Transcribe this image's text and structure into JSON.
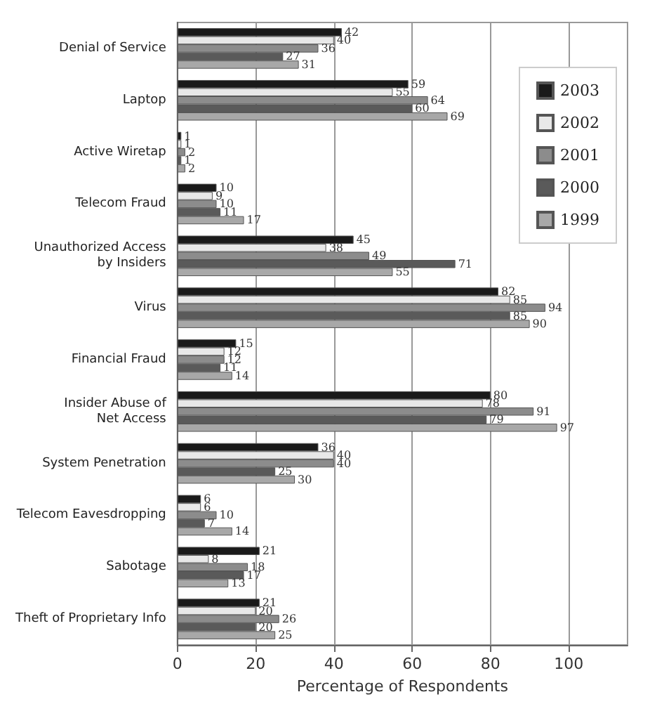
{
  "chart_data": {
    "type": "bar",
    "orientation": "horizontal",
    "xlabel": "Percentage of Respondents",
    "categories": [
      "Denial of Service",
      "Laptop",
      "Active Wiretap",
      "Telecom Fraud",
      "Unauthorized Access\nby Insiders",
      "Virus",
      "Financial Fraud",
      "Insider Abuse of\nNet Access",
      "System Penetration",
      "Telecom Eavesdropping",
      "Sabotage",
      "Theft of Proprietary Info"
    ],
    "series": [
      {
        "name": "2003",
        "color": "#1a1a1a",
        "values": [
          42,
          59,
          1,
          10,
          45,
          82,
          15,
          80,
          36,
          6,
          21,
          21
        ]
      },
      {
        "name": "2002",
        "color": "#e8e8e8",
        "values": [
          40,
          55,
          1,
          9,
          38,
          85,
          12,
          78,
          40,
          6,
          8,
          20
        ]
      },
      {
        "name": "2001",
        "color": "#8c8c8c",
        "values": [
          36,
          64,
          2,
          10,
          49,
          94,
          12,
          91,
          40,
          10,
          18,
          26
        ]
      },
      {
        "name": "2000",
        "color": "#5a5a5a",
        "values": [
          27,
          60,
          1,
          11,
          71,
          85,
          11,
          79,
          25,
          7,
          17,
          20
        ]
      },
      {
        "name": "1999",
        "color": "#a8a8a8",
        "values": [
          31,
          69,
          2,
          17,
          55,
          90,
          14,
          97,
          30,
          14,
          13,
          25
        ]
      }
    ],
    "xlim": [
      0,
      115
    ],
    "xticks": [
      0,
      20,
      40,
      60,
      80,
      100
    ],
    "grid": "x",
    "legend": "top right",
    "data_labels": true
  }
}
